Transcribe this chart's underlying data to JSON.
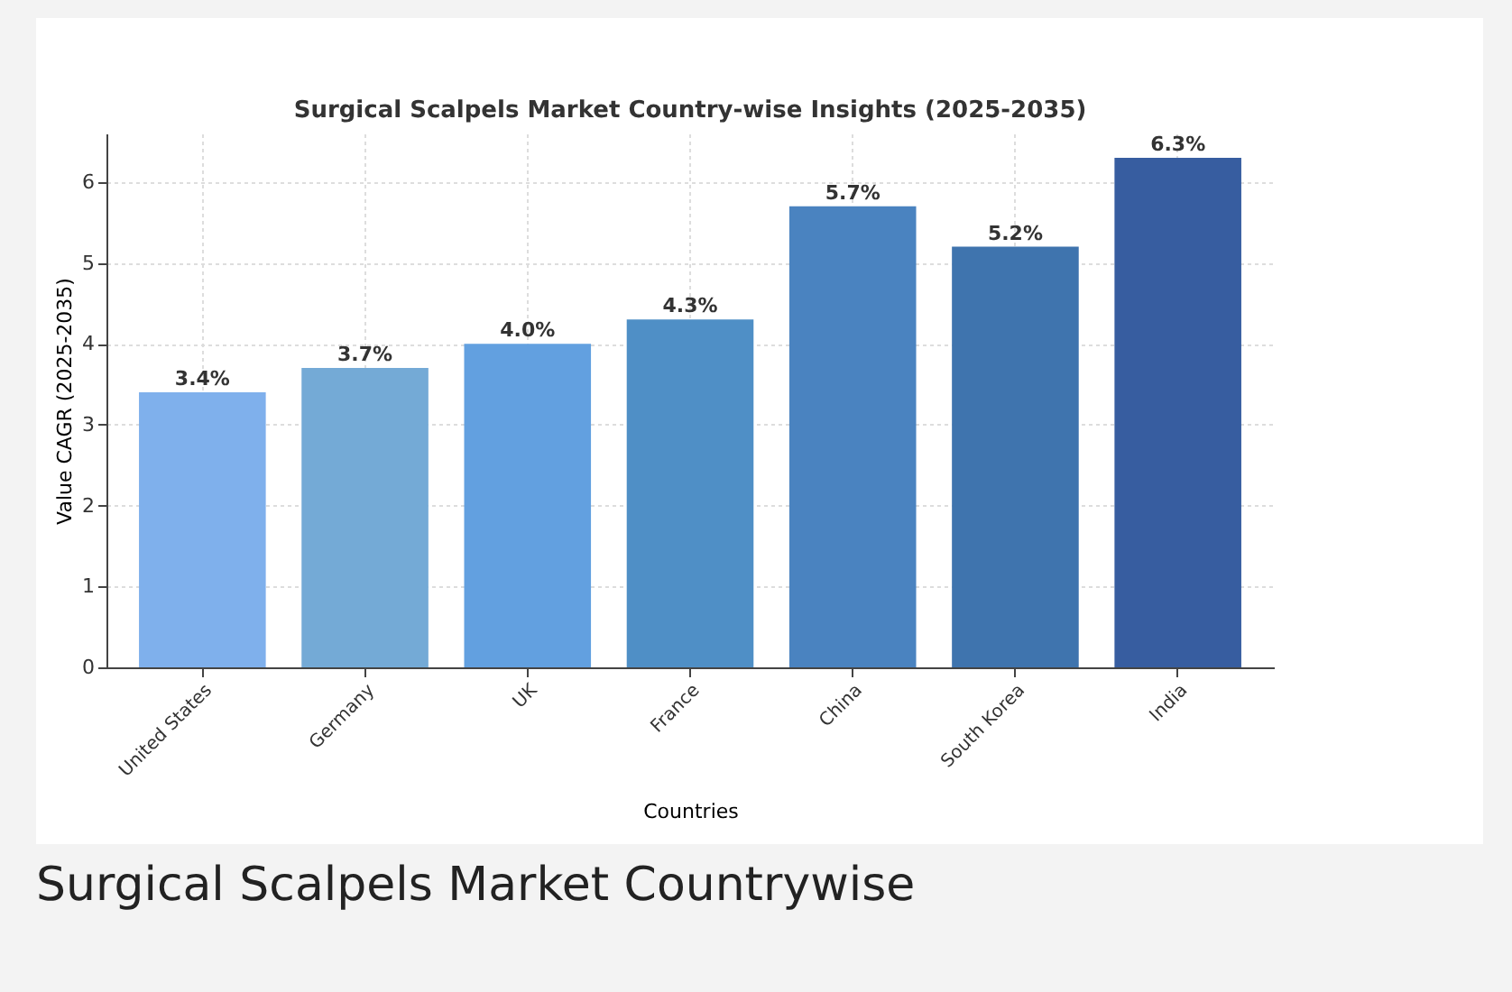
{
  "chart_data": {
    "type": "bar",
    "title": "Surgical Scalpels Market Country-wise Insights (2025-2035)",
    "xlabel": "Countries",
    "ylabel": "Value CAGR (2025-2035)",
    "categories": [
      "United States",
      "Germany",
      "UK",
      "France",
      "China",
      "South Korea",
      "India"
    ],
    "values": [
      3.4,
      3.7,
      4.0,
      4.3,
      5.7,
      5.2,
      6.3
    ],
    "colors": [
      "#7fb0ec",
      "#74aad6",
      "#62a0e0",
      "#4f8fc6",
      "#4a83c0",
      "#3f74ae",
      "#375da0"
    ],
    "value_labels": [
      "3.4%",
      "3.7%",
      "4.0%",
      "4.3%",
      "5.7%",
      "5.2%",
      "6.3%"
    ],
    "ylim": [
      0,
      6.6
    ],
    "yticks": [
      0,
      1,
      2,
      3,
      4,
      5,
      6
    ],
    "grid": true,
    "annotations": [
      "Surgical Scalpels Market Countrywise"
    ]
  }
}
